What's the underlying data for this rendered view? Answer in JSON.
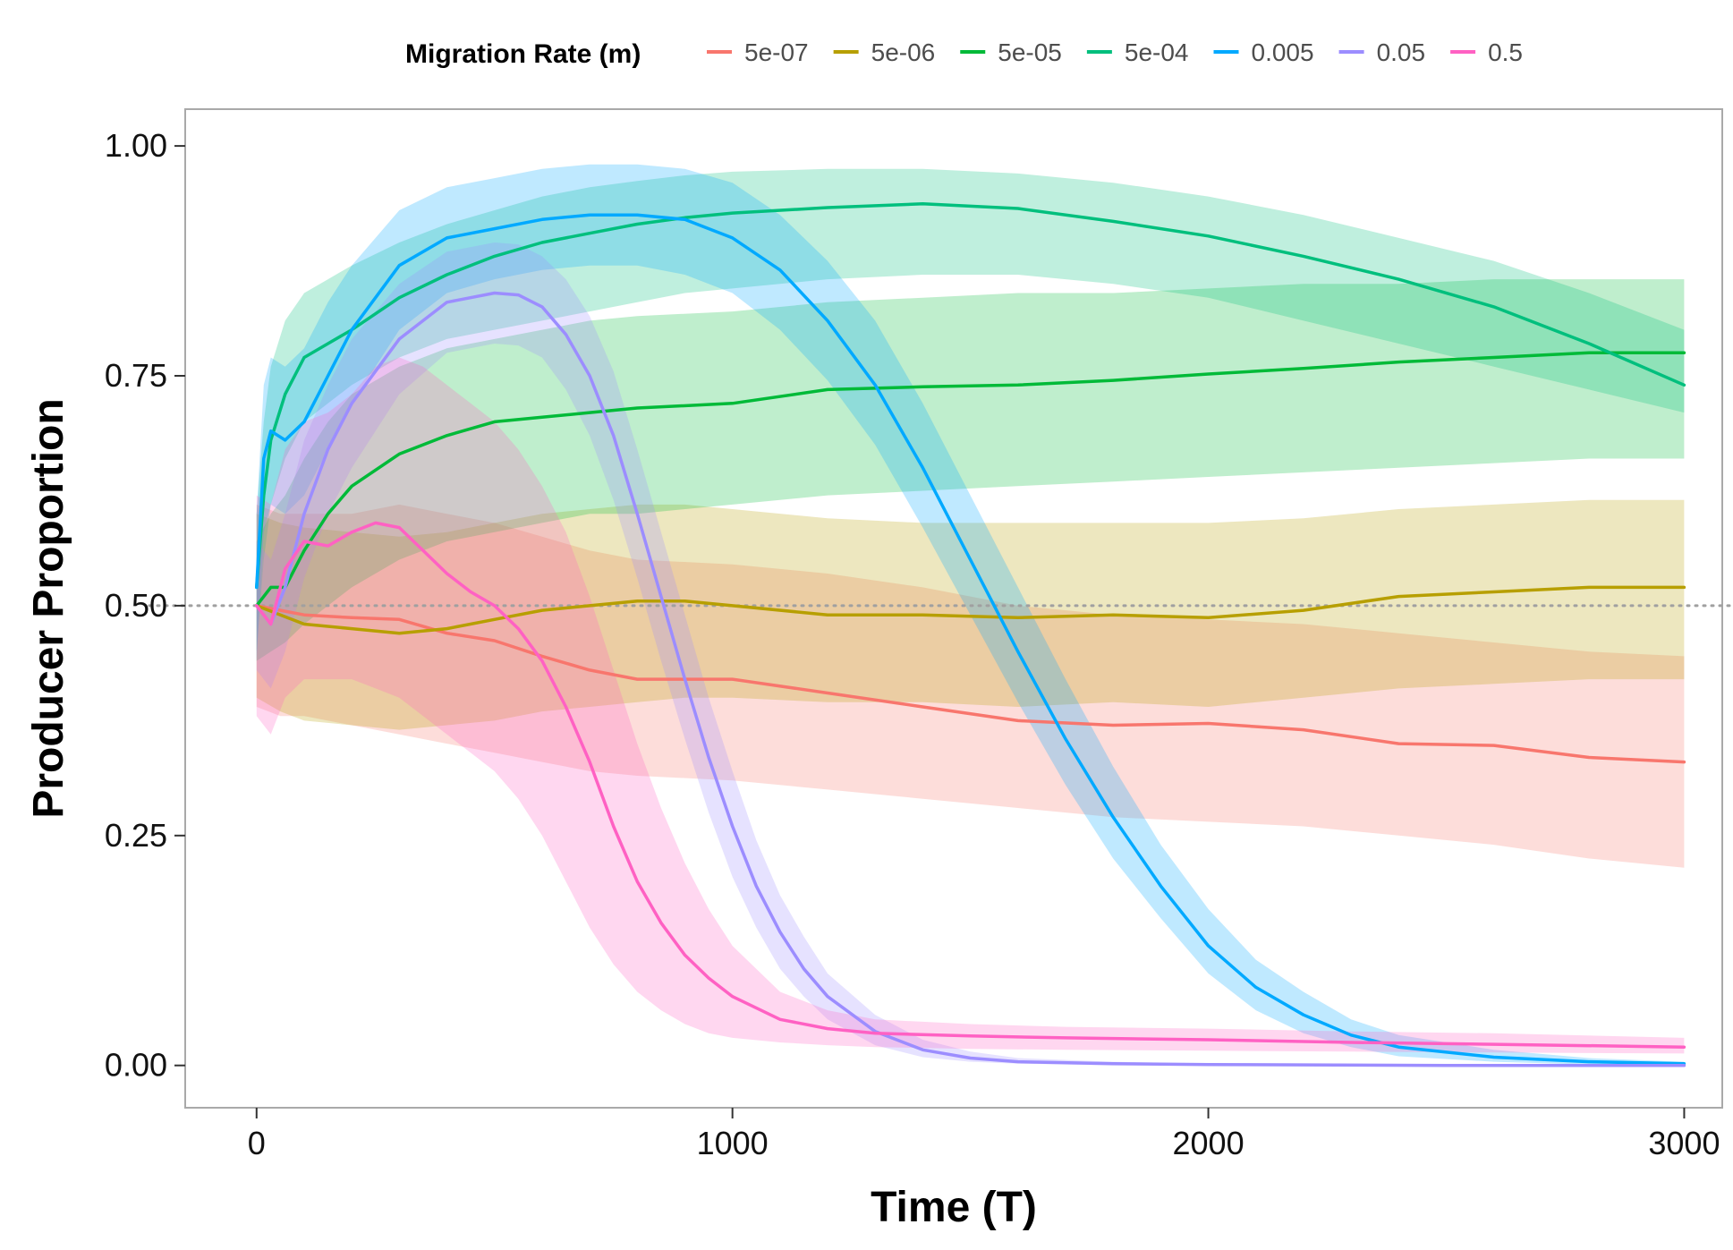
{
  "chart_data": {
    "type": "line",
    "xlabel": "Time (T)",
    "ylabel": "Producer Proportion",
    "xlim": [
      -150,
      3080
    ],
    "ylim": [
      -0.046,
      1.04
    ],
    "x_ticks": [
      0,
      1000,
      2000,
      3000
    ],
    "x_tick_labels": [
      "0",
      "1000",
      "2000",
      "3000"
    ],
    "y_ticks": [
      0,
      0.25,
      0.5,
      0.75,
      1
    ],
    "y_tick_labels": [
      "0.00",
      "0.25",
      "0.50",
      "0.75",
      "1.00"
    ],
    "reference_line": {
      "y": 0.5,
      "style": "dotted",
      "color": "#a0a0a0"
    },
    "grid": false,
    "legend": {
      "title": "Migration Rate (m)",
      "position": "top"
    },
    "band_opacity": 0.25,
    "series": [
      {
        "name": "5e-07",
        "color": "#F8766D",
        "x": [
          0,
          50,
          100,
          200,
          300,
          400,
          500,
          600,
          700,
          800,
          1000,
          1200,
          1400,
          1600,
          1800,
          2000,
          2200,
          2400,
          2600,
          2800,
          3000
        ],
        "y": [
          0.5,
          0.495,
          0.49,
          0.487,
          0.485,
          0.47,
          0.462,
          0.445,
          0.43,
          0.42,
          0.42,
          0.405,
          0.39,
          0.375,
          0.37,
          0.372,
          0.365,
          0.35,
          0.348,
          0.335,
          0.33
        ],
        "lower": [
          0.39,
          0.38,
          0.38,
          0.37,
          0.36,
          0.35,
          0.34,
          0.33,
          0.32,
          0.315,
          0.31,
          0.3,
          0.29,
          0.28,
          0.27,
          0.265,
          0.26,
          0.25,
          0.24,
          0.225,
          0.215
        ],
        "upper": [
          0.61,
          0.6,
          0.6,
          0.6,
          0.61,
          0.6,
          0.59,
          0.575,
          0.56,
          0.55,
          0.545,
          0.535,
          0.52,
          0.5,
          0.49,
          0.485,
          0.48,
          0.47,
          0.46,
          0.45,
          0.445
        ]
      },
      {
        "name": "5e-06",
        "color": "#B79F00",
        "x": [
          0,
          50,
          100,
          200,
          300,
          400,
          500,
          600,
          700,
          800,
          900,
          1000,
          1200,
          1400,
          1600,
          1800,
          2000,
          2200,
          2400,
          2600,
          2800,
          3000
        ],
        "y": [
          0.5,
          0.49,
          0.48,
          0.475,
          0.47,
          0.475,
          0.485,
          0.495,
          0.5,
          0.505,
          0.505,
          0.5,
          0.49,
          0.49,
          0.487,
          0.49,
          0.487,
          0.495,
          0.51,
          0.515,
          0.52,
          0.52
        ],
        "lower": [
          0.4,
          0.385,
          0.375,
          0.37,
          0.365,
          0.37,
          0.375,
          0.385,
          0.39,
          0.395,
          0.4,
          0.4,
          0.395,
          0.395,
          0.39,
          0.395,
          0.39,
          0.4,
          0.41,
          0.415,
          0.42,
          0.42
        ],
        "upper": [
          0.6,
          0.59,
          0.585,
          0.58,
          0.575,
          0.58,
          0.59,
          0.6,
          0.605,
          0.61,
          0.61,
          0.605,
          0.595,
          0.59,
          0.59,
          0.59,
          0.59,
          0.595,
          0.605,
          0.61,
          0.615,
          0.615
        ]
      },
      {
        "name": "5e-05",
        "color": "#00BA38",
        "x": [
          0,
          30,
          60,
          100,
          150,
          200,
          300,
          400,
          500,
          600,
          700,
          800,
          1000,
          1200,
          1400,
          1600,
          1800,
          2000,
          2200,
          2400,
          2600,
          2800,
          3000
        ],
        "y": [
          0.5,
          0.52,
          0.52,
          0.56,
          0.6,
          0.63,
          0.665,
          0.685,
          0.7,
          0.705,
          0.71,
          0.715,
          0.72,
          0.735,
          0.738,
          0.74,
          0.745,
          0.752,
          0.758,
          0.765,
          0.77,
          0.775,
          0.775
        ],
        "lower": [
          0.44,
          0.45,
          0.46,
          0.48,
          0.5,
          0.52,
          0.55,
          0.57,
          0.58,
          0.59,
          0.6,
          0.6,
          0.61,
          0.62,
          0.625,
          0.63,
          0.635,
          0.64,
          0.645,
          0.65,
          0.655,
          0.66,
          0.66
        ],
        "upper": [
          0.57,
          0.6,
          0.62,
          0.66,
          0.7,
          0.73,
          0.76,
          0.78,
          0.79,
          0.8,
          0.81,
          0.815,
          0.82,
          0.83,
          0.835,
          0.84,
          0.84,
          0.845,
          0.85,
          0.85,
          0.855,
          0.855,
          0.855
        ]
      },
      {
        "name": "5e-04",
        "color": "#00BF7D",
        "x": [
          0,
          15,
          30,
          60,
          100,
          150,
          200,
          300,
          400,
          500,
          600,
          700,
          800,
          900,
          1000,
          1200,
          1400,
          1600,
          1800,
          2000,
          2200,
          2400,
          2600,
          2800,
          3000
        ],
        "y": [
          0.52,
          0.62,
          0.68,
          0.73,
          0.77,
          0.785,
          0.8,
          0.835,
          0.86,
          0.88,
          0.895,
          0.905,
          0.915,
          0.922,
          0.927,
          0.933,
          0.937,
          0.932,
          0.918,
          0.902,
          0.88,
          0.855,
          0.825,
          0.785,
          0.74
        ],
        "lower": [
          0.45,
          0.55,
          0.61,
          0.66,
          0.7,
          0.72,
          0.74,
          0.77,
          0.79,
          0.8,
          0.81,
          0.82,
          0.83,
          0.84,
          0.845,
          0.855,
          0.86,
          0.86,
          0.85,
          0.835,
          0.81,
          0.785,
          0.76,
          0.735,
          0.71
        ],
        "upper": [
          0.6,
          0.7,
          0.76,
          0.81,
          0.84,
          0.855,
          0.87,
          0.895,
          0.915,
          0.93,
          0.945,
          0.955,
          0.962,
          0.968,
          0.972,
          0.975,
          0.975,
          0.97,
          0.96,
          0.945,
          0.925,
          0.9,
          0.875,
          0.84,
          0.8
        ]
      },
      {
        "name": "0.005",
        "color": "#00A9FF",
        "x": [
          0,
          15,
          30,
          60,
          100,
          150,
          200,
          300,
          400,
          500,
          600,
          700,
          800,
          900,
          1000,
          1100,
          1200,
          1300,
          1400,
          1500,
          1600,
          1700,
          1800,
          1900,
          2000,
          2100,
          2200,
          2300,
          2400,
          2600,
          2800,
          3000
        ],
        "y": [
          0.52,
          0.66,
          0.69,
          0.68,
          0.7,
          0.75,
          0.8,
          0.87,
          0.9,
          0.91,
          0.92,
          0.925,
          0.925,
          0.92,
          0.9,
          0.865,
          0.81,
          0.74,
          0.65,
          0.55,
          0.45,
          0.355,
          0.27,
          0.195,
          0.13,
          0.085,
          0.055,
          0.033,
          0.02,
          0.009,
          0.004,
          0.002
        ],
        "lower": [
          0.44,
          0.58,
          0.61,
          0.6,
          0.62,
          0.67,
          0.72,
          0.8,
          0.84,
          0.855,
          0.865,
          0.87,
          0.87,
          0.86,
          0.84,
          0.8,
          0.745,
          0.675,
          0.585,
          0.49,
          0.395,
          0.305,
          0.225,
          0.16,
          0.1,
          0.06,
          0.035,
          0.02,
          0.01,
          0.004,
          0.001,
          0.0
        ],
        "upper": [
          0.6,
          0.74,
          0.77,
          0.76,
          0.78,
          0.83,
          0.87,
          0.93,
          0.955,
          0.965,
          0.975,
          0.98,
          0.98,
          0.975,
          0.96,
          0.925,
          0.875,
          0.81,
          0.72,
          0.62,
          0.52,
          0.42,
          0.325,
          0.24,
          0.17,
          0.115,
          0.08,
          0.05,
          0.033,
          0.017,
          0.008,
          0.004
        ]
      },
      {
        "name": "0.05",
        "color": "#9C8DFF",
        "x": [
          0,
          30,
          60,
          100,
          150,
          200,
          300,
          400,
          500,
          550,
          600,
          650,
          700,
          750,
          800,
          850,
          900,
          950,
          1000,
          1050,
          1100,
          1150,
          1200,
          1300,
          1400,
          1500,
          1600,
          1800,
          2000,
          2500,
          3000
        ],
        "y": [
          0.5,
          0.48,
          0.52,
          0.6,
          0.67,
          0.72,
          0.79,
          0.83,
          0.84,
          0.838,
          0.825,
          0.795,
          0.75,
          0.685,
          0.6,
          0.51,
          0.42,
          0.335,
          0.26,
          0.195,
          0.145,
          0.105,
          0.075,
          0.037,
          0.017,
          0.008,
          0.004,
          0.002,
          0.001,
          0.0,
          0.0
        ],
        "lower": [
          0.43,
          0.41,
          0.45,
          0.53,
          0.6,
          0.65,
          0.73,
          0.775,
          0.785,
          0.783,
          0.77,
          0.735,
          0.685,
          0.615,
          0.53,
          0.44,
          0.355,
          0.275,
          0.205,
          0.15,
          0.105,
          0.075,
          0.05,
          0.022,
          0.009,
          0.004,
          0.002,
          0.0,
          0.0,
          0.0,
          0.0
        ],
        "upper": [
          0.57,
          0.55,
          0.6,
          0.68,
          0.74,
          0.79,
          0.85,
          0.885,
          0.895,
          0.893,
          0.88,
          0.855,
          0.815,
          0.755,
          0.67,
          0.58,
          0.49,
          0.4,
          0.32,
          0.245,
          0.185,
          0.14,
          0.1,
          0.055,
          0.028,
          0.015,
          0.008,
          0.004,
          0.002,
          0.001,
          0.001
        ]
      },
      {
        "name": "0.5",
        "color": "#FF61C3",
        "x": [
          0,
          30,
          60,
          100,
          150,
          200,
          250,
          300,
          350,
          400,
          450,
          500,
          550,
          600,
          650,
          700,
          750,
          800,
          850,
          900,
          950,
          1000,
          1100,
          1200,
          1300,
          1500,
          1700,
          2000,
          2300,
          2600,
          3000
        ],
        "y": [
          0.5,
          0.48,
          0.54,
          0.57,
          0.565,
          0.58,
          0.59,
          0.585,
          0.56,
          0.535,
          0.515,
          0.5,
          0.475,
          0.44,
          0.39,
          0.33,
          0.26,
          0.2,
          0.155,
          0.12,
          0.095,
          0.075,
          0.05,
          0.04,
          0.035,
          0.032,
          0.03,
          0.028,
          0.025,
          0.023,
          0.02
        ],
        "lower": [
          0.38,
          0.36,
          0.4,
          0.42,
          0.42,
          0.42,
          0.41,
          0.4,
          0.38,
          0.36,
          0.34,
          0.32,
          0.29,
          0.25,
          0.2,
          0.15,
          0.11,
          0.08,
          0.06,
          0.045,
          0.035,
          0.03,
          0.025,
          0.022,
          0.02,
          0.018,
          0.017,
          0.016,
          0.015,
          0.014,
          0.013
        ],
        "upper": [
          0.62,
          0.61,
          0.67,
          0.7,
          0.71,
          0.73,
          0.76,
          0.77,
          0.76,
          0.74,
          0.72,
          0.7,
          0.67,
          0.63,
          0.58,
          0.51,
          0.43,
          0.35,
          0.28,
          0.22,
          0.17,
          0.13,
          0.08,
          0.06,
          0.05,
          0.045,
          0.042,
          0.04,
          0.037,
          0.035,
          0.03
        ]
      }
    ]
  }
}
